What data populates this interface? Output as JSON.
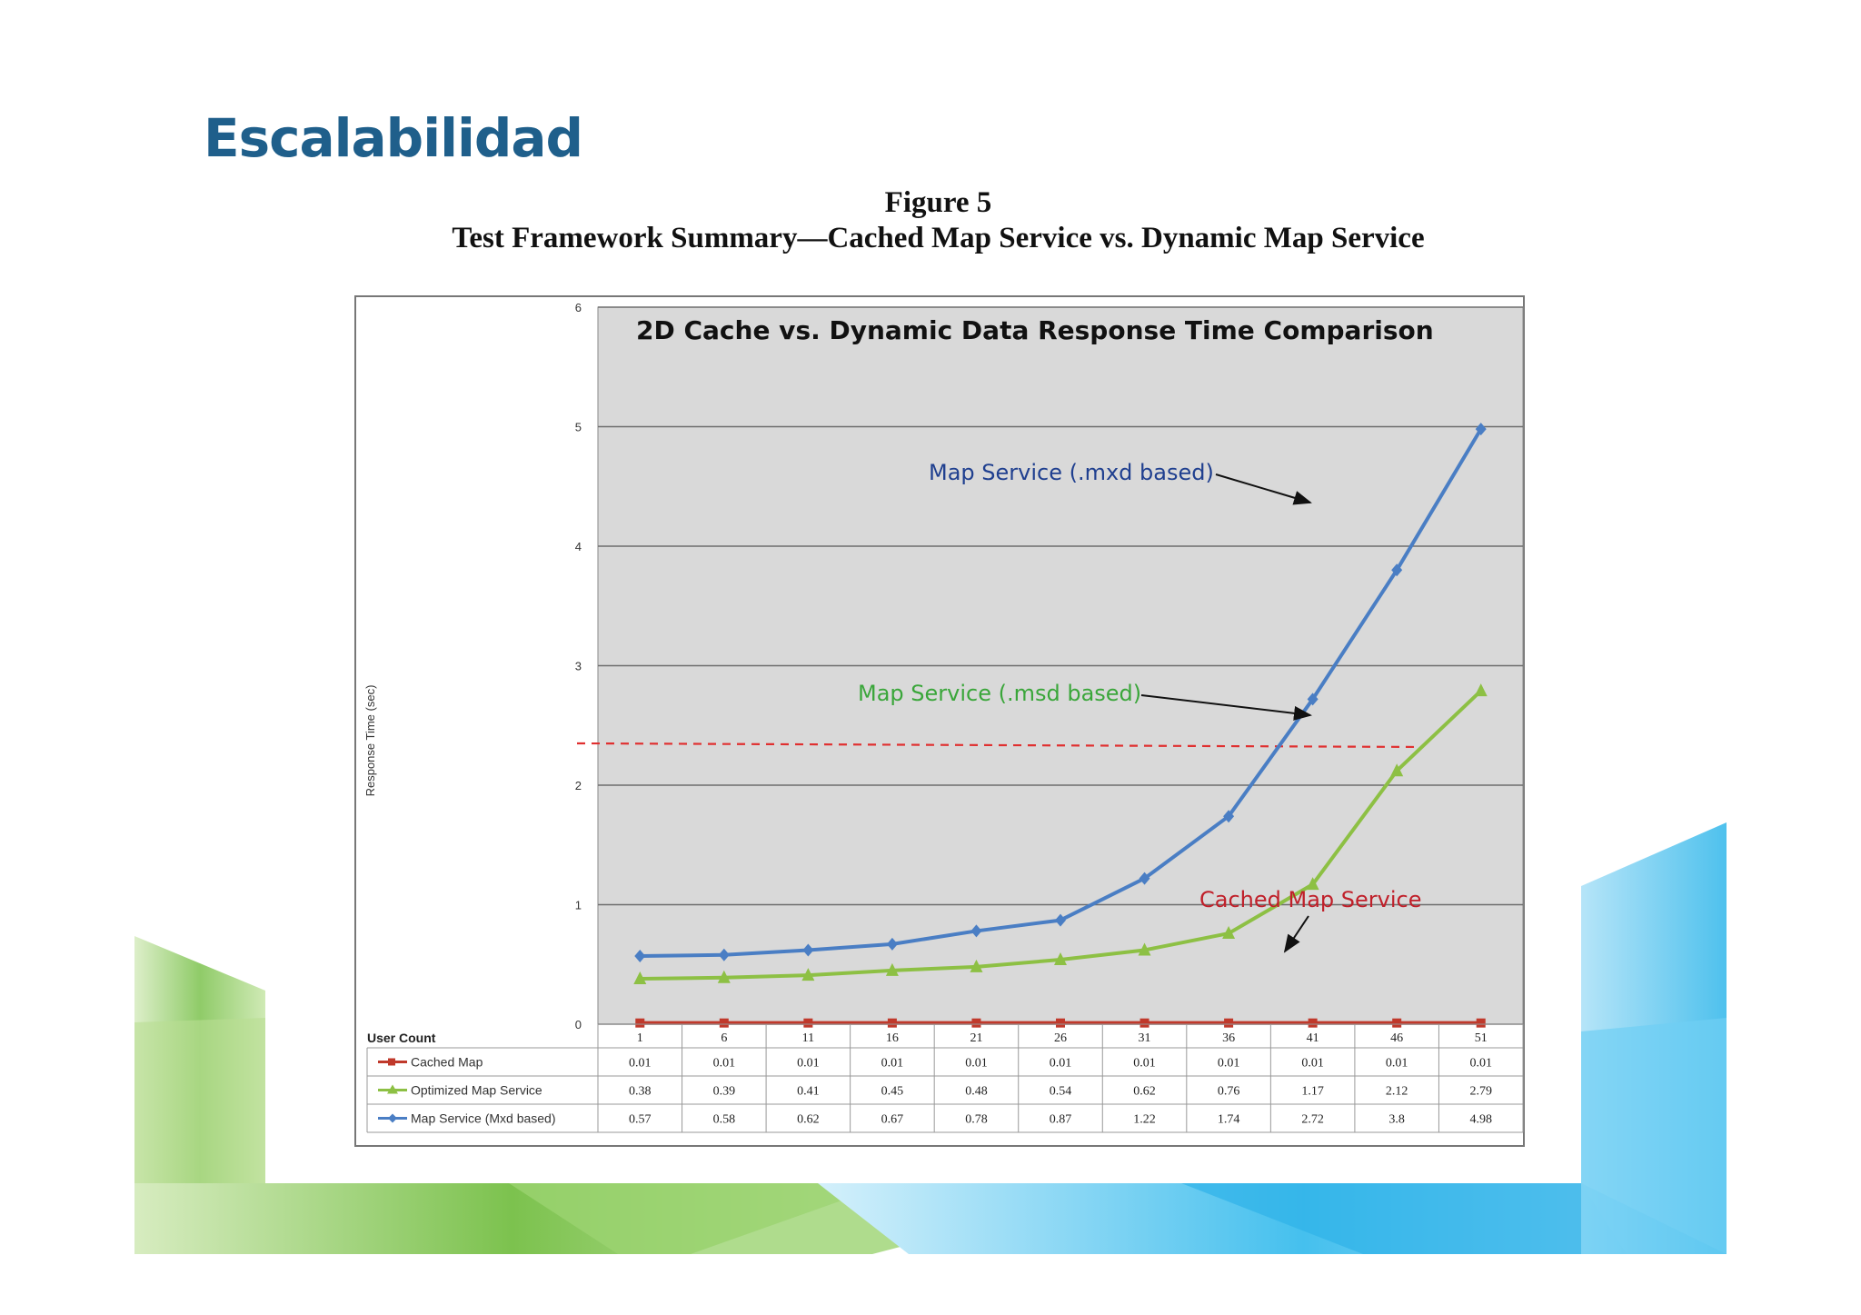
{
  "slide": {
    "title": "Escalabilidad",
    "figure_number": "Figure 5",
    "figure_subtitle": "Test Framework Summary—Cached Map Service vs. Dynamic Map Service"
  },
  "chart_data": {
    "type": "line",
    "title": "2D Cache vs. Dynamic Data Response Time Comparison",
    "xlabel": "User Count",
    "ylabel": "Response Time (sec)",
    "ylim": [
      0,
      6
    ],
    "yticks": [
      0,
      1,
      2,
      3,
      4,
      5,
      6
    ],
    "grid": true,
    "plot_background": "#d9d9d9",
    "categories": [
      1,
      6,
      11,
      16,
      21,
      26,
      31,
      36,
      41,
      46,
      51
    ],
    "series": [
      {
        "name": "Cached Map",
        "color": "#c0392b",
        "marker": "square",
        "values": [
          0.01,
          0.01,
          0.01,
          0.01,
          0.01,
          0.01,
          0.01,
          0.01,
          0.01,
          0.01,
          0.01
        ],
        "table_values": [
          "0.01",
          "0.01",
          "0.01",
          "0.01",
          "0.01",
          "0.01",
          "0.01",
          "0.01",
          "0.01",
          "0.01",
          "0.01"
        ]
      },
      {
        "name": "Optimized Map Service",
        "color": "#8dc044",
        "marker": "triangle",
        "values": [
          0.38,
          0.39,
          0.41,
          0.45,
          0.48,
          0.54,
          0.62,
          0.76,
          1.17,
          2.12,
          2.79
        ],
        "table_values": [
          "0.38",
          "0.39",
          "0.41",
          "0.45",
          "0.48",
          "0.54",
          "0.62",
          "0.76",
          "1.17",
          "2.12",
          "2.79"
        ]
      },
      {
        "name": "Map Service (Mxd based)",
        "color": "#4a7ec4",
        "marker": "diamond",
        "values": [
          0.57,
          0.58,
          0.62,
          0.67,
          0.78,
          0.87,
          1.22,
          1.74,
          2.72,
          3.8,
          4.98
        ],
        "table_values": [
          "0.57",
          "0.58",
          "0.62",
          "0.67",
          "0.78",
          "0.87",
          "1.22",
          "1.74",
          "2.72",
          "3.8",
          "4.98"
        ]
      }
    ],
    "threshold_line": {
      "y": 2.35,
      "color": "#e03030",
      "style": "dashed"
    },
    "annotations": [
      {
        "text": "Map Service (.mxd based)",
        "color": "#1f3f8f"
      },
      {
        "text": "Map Service (.msd based)",
        "color": "#3aa63a"
      },
      {
        "text": "Cached Map Service",
        "color": "#c0202a"
      }
    ]
  }
}
